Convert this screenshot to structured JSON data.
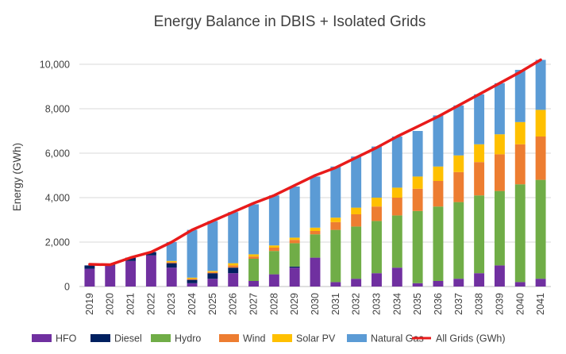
{
  "chart_data": {
    "type": "bar",
    "title": "Energy Balance in DBIS + Isolated Grids",
    "xlabel": "",
    "ylabel": "Energy (GWh)",
    "ylim": [
      0,
      10000
    ],
    "yticks": [
      0,
      2000,
      4000,
      6000,
      8000,
      10000
    ],
    "ytick_labels": [
      "0",
      "2,000",
      "4,000",
      "6,000",
      "8,000",
      "10,000"
    ],
    "grid": true,
    "legend_position": "bottom",
    "categories": [
      "2019",
      "2020",
      "2021",
      "2022",
      "2023",
      "2024",
      "2025",
      "2026",
      "2027",
      "2028",
      "2029",
      "2030",
      "2031",
      "2032",
      "2033",
      "2034",
      "2035",
      "2036",
      "2037",
      "2038",
      "2039",
      "2040",
      "2041"
    ],
    "series": [
      {
        "name": "HFO",
        "kind": "bar",
        "color": "#7030a0",
        "values": [
          800,
          950,
          1150,
          1400,
          850,
          150,
          350,
          600,
          250,
          550,
          850,
          1300,
          200,
          350,
          600,
          850,
          150,
          250,
          350,
          600,
          950,
          200,
          350
        ]
      },
      {
        "name": "Diesel",
        "kind": "bar",
        "color": "#002060",
        "values": [
          150,
          30,
          150,
          150,
          200,
          150,
          250,
          250,
          0,
          0,
          50,
          0,
          0,
          0,
          0,
          0,
          0,
          0,
          0,
          0,
          0,
          0,
          0
        ]
      },
      {
        "name": "Hydro",
        "kind": "bar",
        "color": "#70ad47",
        "values": [
          0,
          0,
          0,
          0,
          0,
          0,
          0,
          0,
          1000,
          1050,
          1050,
          1050,
          2350,
          2350,
          2350,
          2350,
          3250,
          3350,
          3450,
          3500,
          3350,
          4400,
          4450
        ]
      },
      {
        "name": "Wind",
        "kind": "bar",
        "color": "#ed7d31",
        "values": [
          0,
          0,
          0,
          0,
          50,
          50,
          50,
          100,
          100,
          150,
          150,
          150,
          350,
          550,
          650,
          800,
          1000,
          1150,
          1350,
          1500,
          1650,
          1800,
          1950
        ]
      },
      {
        "name": "Solar PV",
        "kind": "bar",
        "color": "#ffc000",
        "values": [
          0,
          0,
          0,
          0,
          50,
          50,
          50,
          100,
          100,
          100,
          100,
          150,
          200,
          300,
          400,
          450,
          550,
          650,
          750,
          800,
          900,
          1000,
          1200
        ]
      },
      {
        "name": "Natural Gas",
        "kind": "bar",
        "color": "#5b9bd5",
        "values": [
          0,
          0,
          0,
          0,
          850,
          2150,
          2250,
          2300,
          2250,
          2250,
          2300,
          2300,
          2300,
          2300,
          2300,
          2300,
          2050,
          2300,
          2250,
          2250,
          2300,
          2350,
          2250
        ]
      },
      {
        "name": "All Grids (GWh)",
        "kind": "line",
        "color": "#e81b1b",
        "values": [
          1000,
          980,
          1300,
          1550,
          2000,
          2550,
          2950,
          3350,
          3750,
          4100,
          4550,
          5000,
          5350,
          5800,
          6250,
          6750,
          7200,
          7650,
          8150,
          8650,
          9150,
          9650,
          10200
        ]
      }
    ]
  }
}
